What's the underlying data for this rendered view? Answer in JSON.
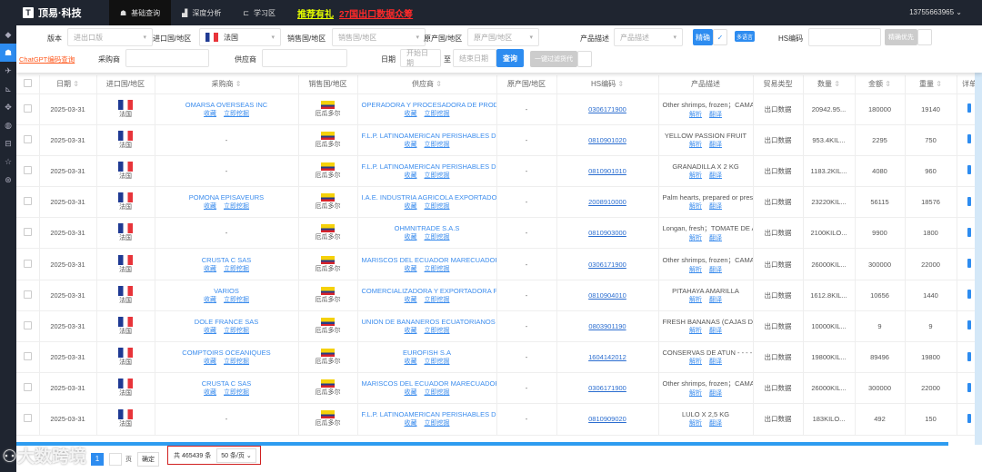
{
  "app": {
    "title": "顶易·科技",
    "user": "13755663965"
  },
  "nav": [
    {
      "label": "基础查询",
      "icon": "search-user-icon",
      "active": true
    },
    {
      "label": "深度分析",
      "icon": "chart-icon"
    },
    {
      "label": "学习区",
      "icon": "book-icon"
    }
  ],
  "promo": {
    "text1": "推荐有礼",
    "text2": "27国出口数据众筹"
  },
  "sidebar": [
    "cube-icon",
    "user-search-icon",
    "plane-icon",
    "chart-icon",
    "handshake-icon",
    "globe-icon",
    "chat-icon",
    "star-icon",
    "settings-icon"
  ],
  "filters": {
    "edition_label": "版本",
    "edition_placeholder": "进出口版",
    "import_label": "进口国/地区",
    "import_value": "法国",
    "sales_label": "销售国/地区",
    "sales_placeholder": "销售国/地区",
    "origin_label": "原产国/地区",
    "origin_placeholder": "原产国/地区",
    "desc_label": "产品描述",
    "desc_placeholder": "产品描述",
    "exact_label": "精确",
    "multilang_label": "多语言",
    "hs_label": "HS编码",
    "exact_first_label": "精确优先",
    "chatgpt_link": "ChatGPT编码查询",
    "buyer_label": "采购商",
    "supplier_label": "供应商",
    "date_label": "日期",
    "start_placeholder": "开始日期",
    "to": "至",
    "end_placeholder": "结束日期",
    "search_button": "查询",
    "filter_forwarder": "一键过滤货代"
  },
  "table": {
    "headers": [
      "日期",
      "进口国/地区",
      "采购商",
      "销售国/地区",
      "供应商",
      "原产国/地区",
      "HS编码",
      "产品描述",
      "贸易类型",
      "数量",
      "金额",
      "重量",
      "详单"
    ],
    "action_fav": "收藏",
    "action_mine": "立即挖掘",
    "action_parse": "解析",
    "action_translate": "翻译",
    "rows": [
      {
        "date": "2025-03-31",
        "import": "法国",
        "buyer": "OMARSA OVERSEAS INC",
        "sales": "厄瓜多尔",
        "supplier": "OPERADORA Y PROCESADORA DE PRODUCTOS",
        "origin": "-",
        "hs": "0306171900",
        "desc": "Other shrimps, frozen；CAMARON",
        "type": "出口数据",
        "qty": "20942.95...",
        "amount": "180000",
        "weight": "19140"
      },
      {
        "date": "2025-03-31",
        "import": "法国",
        "buyer": "-",
        "sales": "厄瓜多尔",
        "supplier": "F.L.P. LATINOAMERICAN PERISHABLES DEL",
        "origin": "-",
        "hs": "0810901020",
        "desc": "YELLOW PASSION FRUIT",
        "type": "出口数据",
        "qty": "953.4KIL...",
        "amount": "2295",
        "weight": "750"
      },
      {
        "date": "2025-03-31",
        "import": "法国",
        "buyer": "-",
        "sales": "厄瓜多尔",
        "supplier": "F.L.P. LATINOAMERICAN PERISHABLES DEL",
        "origin": "-",
        "hs": "0810901010",
        "desc": "GRANADILLA X 2 KG",
        "type": "出口数据",
        "qty": "1183.2KIL...",
        "amount": "4080",
        "weight": "960"
      },
      {
        "date": "2025-03-31",
        "import": "法国",
        "buyer": "POMONA EPISAVEURS",
        "sales": "厄瓜多尔",
        "supplier": "I.A.E. INDUSTRIA AGRICOLA EXPORTADORA",
        "origin": "-",
        "hs": "2008910000",
        "desc": "Palm hearts, prepared or preserved",
        "type": "出口数据",
        "qty": "23220KIL...",
        "amount": "56115",
        "weight": "18576"
      },
      {
        "date": "2025-03-31",
        "import": "法国",
        "buyer": "-",
        "sales": "厄瓜多尔",
        "supplier": "OHMNITRADE S.A.S",
        "origin": "-",
        "hs": "0810903000",
        "desc": "Longan, fresh；TOMATE DE ARBOL",
        "type": "出口数据",
        "qty": "2100KILO...",
        "amount": "9900",
        "weight": "1800"
      },
      {
        "date": "2025-03-31",
        "import": "法国",
        "buyer": "CRUSTA C SAS",
        "sales": "厄瓜多尔",
        "supplier": "MARISCOS DEL ECUADOR MARECUADOR",
        "origin": "-",
        "hs": "0306171900",
        "desc": "Other shrimps, frozen；CAMARON",
        "type": "出口数据",
        "qty": "26000KIL...",
        "amount": "300000",
        "weight": "22000"
      },
      {
        "date": "2025-03-31",
        "import": "法国",
        "buyer": "VARIOS",
        "sales": "厄瓜多尔",
        "supplier": "COMERCIALIZADORA Y EXPORTADORA PI",
        "origin": "-",
        "hs": "0810904010",
        "desc": "PITAHAYA AMARILLA",
        "type": "出口数据",
        "qty": "1612.8KIL...",
        "amount": "10656",
        "weight": "1440"
      },
      {
        "date": "2025-03-31",
        "import": "法国",
        "buyer": "DOLE FRANCE SAS",
        "sales": "厄瓜多尔",
        "supplier": "UNION DE BANANEROS ECUATORIANOS S",
        "origin": "-",
        "hs": "0803901190",
        "desc": "FRESH BANANAS (CAJAS DE",
        "type": "出口数据",
        "qty": "10000KIL...",
        "amount": "9",
        "weight": "9"
      },
      {
        "date": "2025-03-31",
        "import": "法国",
        "buyer": "COMPTOIRS OCEANIQUES",
        "sales": "厄瓜多尔",
        "supplier": "EUROFISH S.A",
        "origin": "-",
        "hs": "1604142012",
        "desc": "CONSERVAS DE ATUN - - - -",
        "type": "出口数据",
        "qty": "19800KIL...",
        "amount": "89496",
        "weight": "19800"
      },
      {
        "date": "2025-03-31",
        "import": "法国",
        "buyer": "CRUSTA C SAS",
        "sales": "厄瓜多尔",
        "supplier": "MARISCOS DEL ECUADOR MARECUADOR",
        "origin": "-",
        "hs": "0306171900",
        "desc": "Other shrimps, frozen；CAMARON",
        "type": "出口数据",
        "qty": "26000KIL...",
        "amount": "300000",
        "weight": "22000"
      },
      {
        "date": "2025-03-31",
        "import": "法国",
        "buyer": "-",
        "sales": "厄瓜多尔",
        "supplier": "F.L.P. LATINOAMERICAN PERISHABLES DEL",
        "origin": "-",
        "hs": "0810909020",
        "desc": "LULO X 2,5 KG",
        "type": "出口数据",
        "qty": "183KILO...",
        "amount": "492",
        "weight": "150"
      }
    ]
  },
  "pagination": {
    "current": "1",
    "page_unit": "页",
    "confirm": "确定",
    "total": "共 465439 条",
    "page_size": "50 条/页"
  },
  "watermark": "大数跨境",
  "colors": {
    "accent": "#2d8cf0",
    "topbar": "#1f2530",
    "promo_yellow": "#e6ff00",
    "promo_red": "#ff2a2a"
  }
}
